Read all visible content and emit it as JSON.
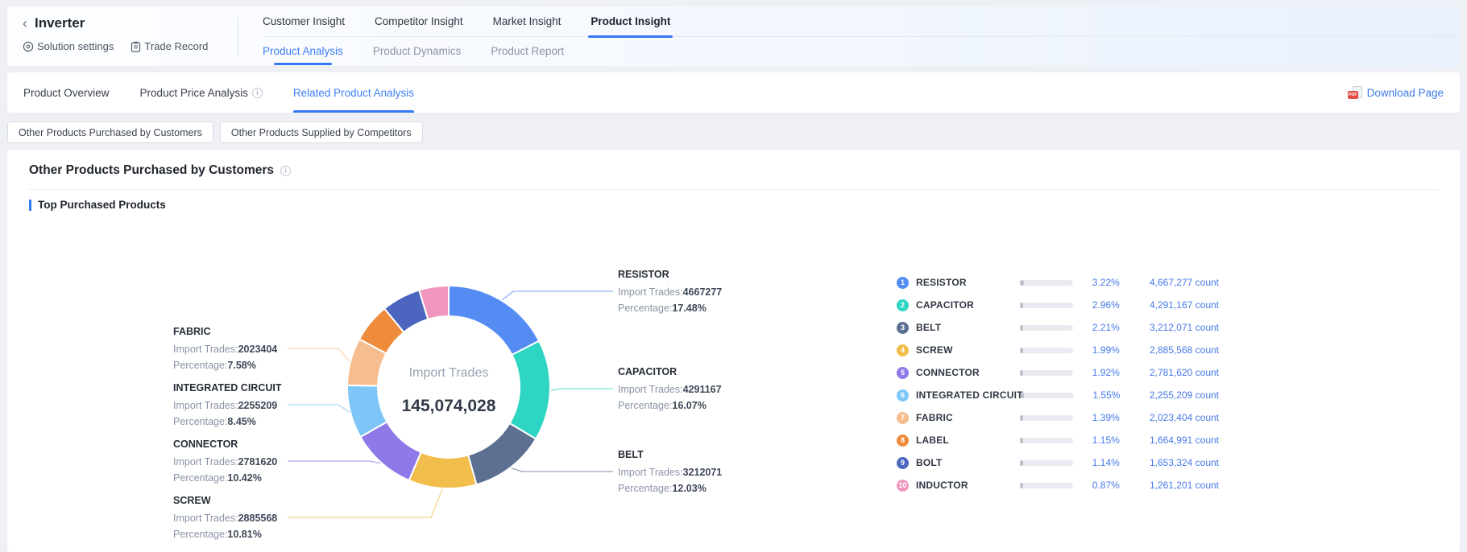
{
  "header": {
    "back_icon": "‹",
    "title": "Inverter",
    "actions": [
      {
        "label": "Solution settings"
      },
      {
        "label": "Trade Record"
      }
    ],
    "tabs": [
      "Customer Insight",
      "Competitor Insight",
      "Market Insight",
      "Product Insight"
    ],
    "active_tab": "Product Insight",
    "subtabs": [
      "Product Analysis",
      "Product Dynamics",
      "Product Report"
    ],
    "active_subtab": "Product Analysis"
  },
  "toolbar": {
    "tabs": [
      {
        "label": "Product Overview"
      },
      {
        "label": "Product Price Analysis"
      },
      {
        "label": "Related Product Analysis"
      }
    ],
    "active_tab": "Related Product Analysis",
    "info_glyph": "i",
    "download_label": "Download Page",
    "pdf_badge": "PDF"
  },
  "filters": {
    "buttons": [
      "Other Products Purchased by Customers",
      "Other Products Supplied by Competitors"
    ]
  },
  "section": {
    "title": "Other Products Purchased by Customers",
    "info_glyph": "i",
    "subsection": "Top Purchased Products"
  },
  "chart_data": {
    "type": "pie",
    "title": "Top Purchased Products",
    "center_label": "Import Trades",
    "center_value": "145,074,028",
    "label_prefix_import": "Import Trades:",
    "label_prefix_percentage": "Percentage:",
    "count_suffix": " count",
    "legend_position": "right",
    "series": [
      {
        "rank": "1",
        "name": "RESISTOR",
        "value": 4667277,
        "count_formatted": "4,667,277",
        "pct_of_total": "3.22%",
        "pct_of_top10": 17.48,
        "color": "#558CF4",
        "callout": true
      },
      {
        "rank": "2",
        "name": "CAPACITOR",
        "value": 4291167,
        "count_formatted": "4,291,167",
        "pct_of_total": "2.96%",
        "pct_of_top10": 16.07,
        "color": "#2FD5C3",
        "callout": true
      },
      {
        "rank": "3",
        "name": "BELT",
        "value": 3212071,
        "count_formatted": "3,212,071",
        "pct_of_total": "2.21%",
        "pct_of_top10": 12.03,
        "color": "#5D7092",
        "callout": true
      },
      {
        "rank": "4",
        "name": "SCREW",
        "value": 2885568,
        "count_formatted": "2,885,568",
        "pct_of_total": "1.99%",
        "pct_of_top10": 10.81,
        "color": "#F1BD4B",
        "callout": true
      },
      {
        "rank": "5",
        "name": "CONNECTOR",
        "value": 2781620,
        "count_formatted": "2,781,620",
        "pct_of_total": "1.92%",
        "pct_of_top10": 10.42,
        "color": "#8F79E8",
        "callout": true
      },
      {
        "rank": "6",
        "name": "INTEGRATED CIRCUIT",
        "value": 2255209,
        "count_formatted": "2,255,209",
        "pct_of_total": "1.55%",
        "pct_of_top10": 8.45,
        "color": "#7EC6F7",
        "callout": true
      },
      {
        "rank": "7",
        "name": "FABRIC",
        "value": 2023404,
        "count_formatted": "2,023,404",
        "pct_of_total": "1.39%",
        "pct_of_top10": 7.58,
        "color": "#F6BE8E",
        "callout": true
      },
      {
        "rank": "8",
        "name": "LABEL",
        "value": 1664991,
        "count_formatted": "1,664,991",
        "pct_of_total": "1.15%",
        "pct_of_top10": 6.24,
        "color": "#EF8C3C",
        "callout": false
      },
      {
        "rank": "9",
        "name": "BOLT",
        "value": 1653324,
        "count_formatted": "1,653,324",
        "pct_of_total": "1.14%",
        "pct_of_top10": 6.19,
        "color": "#4C66C0",
        "callout": false
      },
      {
        "rank": "10",
        "name": "INDUCTOR",
        "value": 1261201,
        "count_formatted": "1,261,201",
        "pct_of_total": "0.87%",
        "pct_of_top10": 4.72,
        "color": "#F096BE",
        "callout": false
      }
    ]
  }
}
